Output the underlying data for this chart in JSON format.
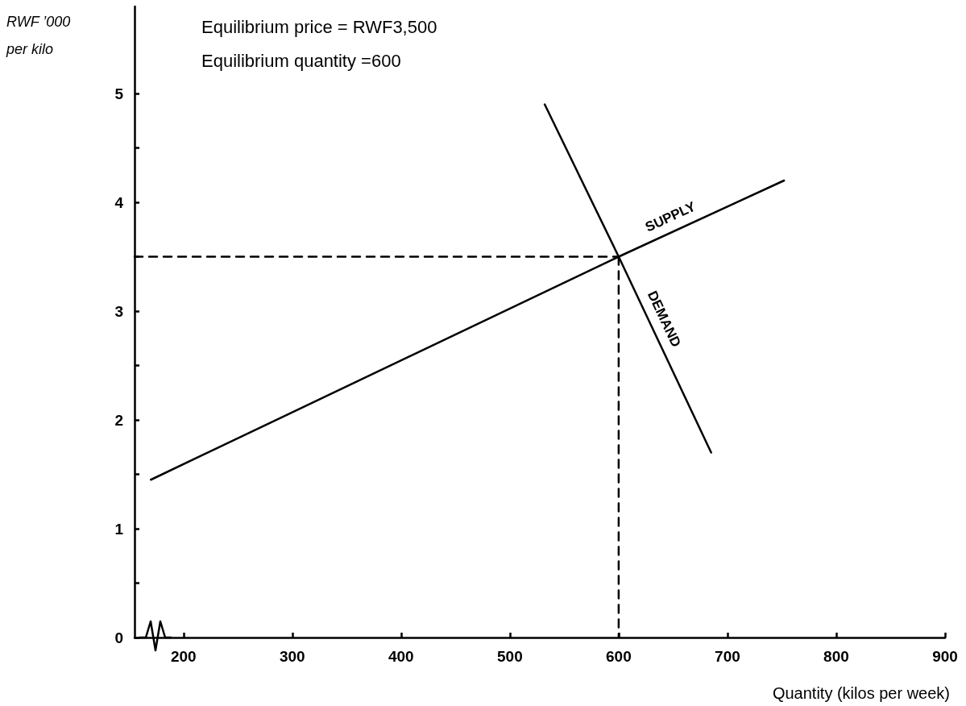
{
  "chart_data": {
    "type": "line",
    "xlabel": "Quantity (kilos per week)",
    "ylabel": "RWF ’000 per kilo",
    "annotations": [
      "Equilibrium price = RWF3,500",
      "Equilibrium quantity =600"
    ],
    "series": [
      {
        "name": "SUPPLY",
        "color": "#000000",
        "x": [
          170,
          600,
          752
        ],
        "values": [
          1.45,
          3.5,
          4.2
        ],
        "line_style": "solid"
      },
      {
        "name": "DEMAND",
        "color": "#000000",
        "x": [
          532,
          600,
          685
        ],
        "values": [
          4.9,
          3.5,
          1.7
        ],
        "line_style": "solid"
      },
      {
        "color": "#000000",
        "x": [
          155,
          600
        ],
        "values": [
          3.5,
          3.5
        ],
        "line_style": "dashed"
      },
      {
        "color": "#000000",
        "x": [
          600,
          600
        ],
        "values": [
          3.5,
          0
        ],
        "line_style": "dashed"
      }
    ],
    "xlim": [
      155,
      900
    ],
    "xticks": [
      200,
      300,
      400,
      500,
      600,
      700,
      800,
      900
    ],
    "ylim": [
      0,
      5.8
    ],
    "yticks": [
      0,
      {
        "value": 0.5,
        "label": null
      },
      1,
      {
        "value": 1.5,
        "label": null
      },
      2,
      {
        "value": 2.5,
        "label": null
      },
      3,
      {
        "value": 3.5,
        "label": null
      },
      4,
      {
        "value": 4.5,
        "label": null
      },
      5
    ],
    "grid": false,
    "legend": false,
    "marker": "none"
  }
}
